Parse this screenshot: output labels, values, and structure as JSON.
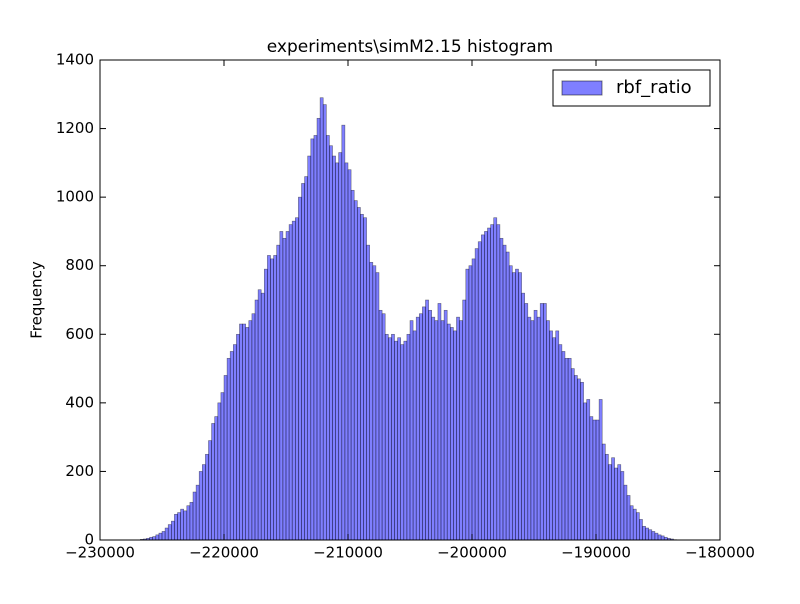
{
  "chart_data": {
    "type": "histogram",
    "title": "experiments\\simM2.15 histogram",
    "ylabel": "Frequency",
    "series": [
      {
        "name": "rbf_ratio",
        "color": "#0000ff",
        "alpha": 0.5,
        "bins": [
          -226750,
          -226500,
          -226250,
          -226000,
          -225750,
          -225500,
          -225250,
          -225000,
          -224750,
          -224500,
          -224250,
          -224000,
          -223750,
          -223500,
          -223250,
          -223000,
          -222750,
          -222500,
          -222250,
          -222000,
          -221750,
          -221500,
          -221250,
          -221000,
          -220750,
          -220500,
          -220250,
          -220000,
          -219750,
          -219500,
          -219250,
          -219000,
          -218750,
          -218500,
          -218250,
          -218000,
          -217750,
          -217500,
          -217250,
          -217000,
          -216750,
          -216500,
          -216250,
          -216000,
          -215750,
          -215500,
          -215250,
          -215000,
          -214750,
          -214500,
          -214250,
          -214000,
          -213750,
          -213500,
          -213250,
          -213000,
          -212750,
          -212500,
          -212250,
          -212000,
          -211750,
          -211500,
          -211250,
          -211000,
          -210750,
          -210500,
          -210250,
          -210000,
          -209750,
          -209500,
          -209250,
          -209000,
          -208750,
          -208500,
          -208250,
          -208000,
          -207750,
          -207500,
          -207250,
          -207000,
          -206750,
          -206500,
          -206250,
          -206000,
          -205750,
          -205500,
          -205250,
          -205000,
          -204750,
          -204500,
          -204250,
          -204000,
          -203750,
          -203500,
          -203250,
          -203000,
          -202750,
          -202500,
          -202250,
          -202000,
          -201750,
          -201500,
          -201250,
          -201000,
          -200750,
          -200500,
          -200250,
          -200000,
          -199750,
          -199500,
          -199250,
          -199000,
          -198750,
          -198500,
          -198250,
          -198000,
          -197750,
          -197500,
          -197250,
          -197000,
          -196750,
          -196500,
          -196250,
          -196000,
          -195750,
          -195500,
          -195250,
          -195000,
          -194750,
          -194500,
          -194250,
          -194000,
          -193750,
          -193500,
          -193250,
          -193000,
          -192750,
          -192500,
          -192250,
          -192000,
          -191750,
          -191500,
          -191250,
          -191000,
          -190750,
          -190500,
          -190250,
          -190000,
          -189750,
          -189500,
          -189250,
          -189000,
          -188750,
          -188500,
          -188250,
          -188000,
          -187750,
          -187500,
          -187250,
          -187000,
          -186750,
          -186500,
          -186250,
          -186000,
          -185750,
          -185500,
          -185250,
          -185000,
          -184750,
          -184500,
          -184250,
          -184000,
          -183750,
          -183500
        ],
        "values": [
          2,
          3,
          5,
          8,
          10,
          15,
          20,
          25,
          35,
          45,
          55,
          75,
          80,
          90,
          85,
          100,
          110,
          140,
          160,
          200,
          220,
          250,
          290,
          340,
          360,
          400,
          430,
          480,
          530,
          550,
          570,
          600,
          630,
          630,
          620,
          640,
          660,
          700,
          730,
          720,
          790,
          830,
          820,
          830,
          860,
          900,
          880,
          900,
          920,
          930,
          940,
          1000,
          1040,
          1060,
          1120,
          1170,
          1180,
          1230,
          1290,
          1270,
          1180,
          1150,
          1120,
          1100,
          1130,
          1210,
          1100,
          1080,
          1020,
          990,
          970,
          950,
          940,
          860,
          810,
          800,
          780,
          670,
          660,
          600,
          590,
          600,
          580,
          590,
          570,
          580,
          600,
          640,
          610,
          650,
          660,
          680,
          700,
          670,
          650,
          640,
          690,
          640,
          670,
          630,
          620,
          610,
          650,
          640,
          700,
          790,
          800,
          820,
          850,
          870,
          890,
          900,
          910,
          920,
          940,
          920,
          880,
          860,
          840,
          800,
          780,
          790,
          780,
          720,
          690,
          650,
          640,
          670,
          650,
          690,
          690,
          640,
          610,
          590,
          610,
          570,
          550,
          530,
          530,
          500,
          480,
          470,
          460,
          400,
          410,
          360,
          350,
          350,
          410,
          280,
          250,
          220,
          240,
          210,
          220,
          200,
          160,
          130,
          100,
          90,
          80,
          60,
          40,
          35,
          30,
          25,
          20,
          15,
          12,
          8,
          5,
          3,
          1
        ]
      }
    ],
    "xlim": [
      -230000,
      -180000
    ],
    "xticks": [
      {
        "value": -230000,
        "label": "−230000"
      },
      {
        "value": -220000,
        "label": "−220000"
      },
      {
        "value": -210000,
        "label": "−210000"
      },
      {
        "value": -200000,
        "label": "−200000"
      },
      {
        "value": -190000,
        "label": "−190000"
      },
      {
        "value": -180000,
        "label": "−180000"
      }
    ],
    "ylim": [
      0,
      1400
    ],
    "yticks": [
      0,
      200,
      400,
      600,
      800,
      1000,
      1200,
      1400
    ],
    "legend": "upper right"
  }
}
